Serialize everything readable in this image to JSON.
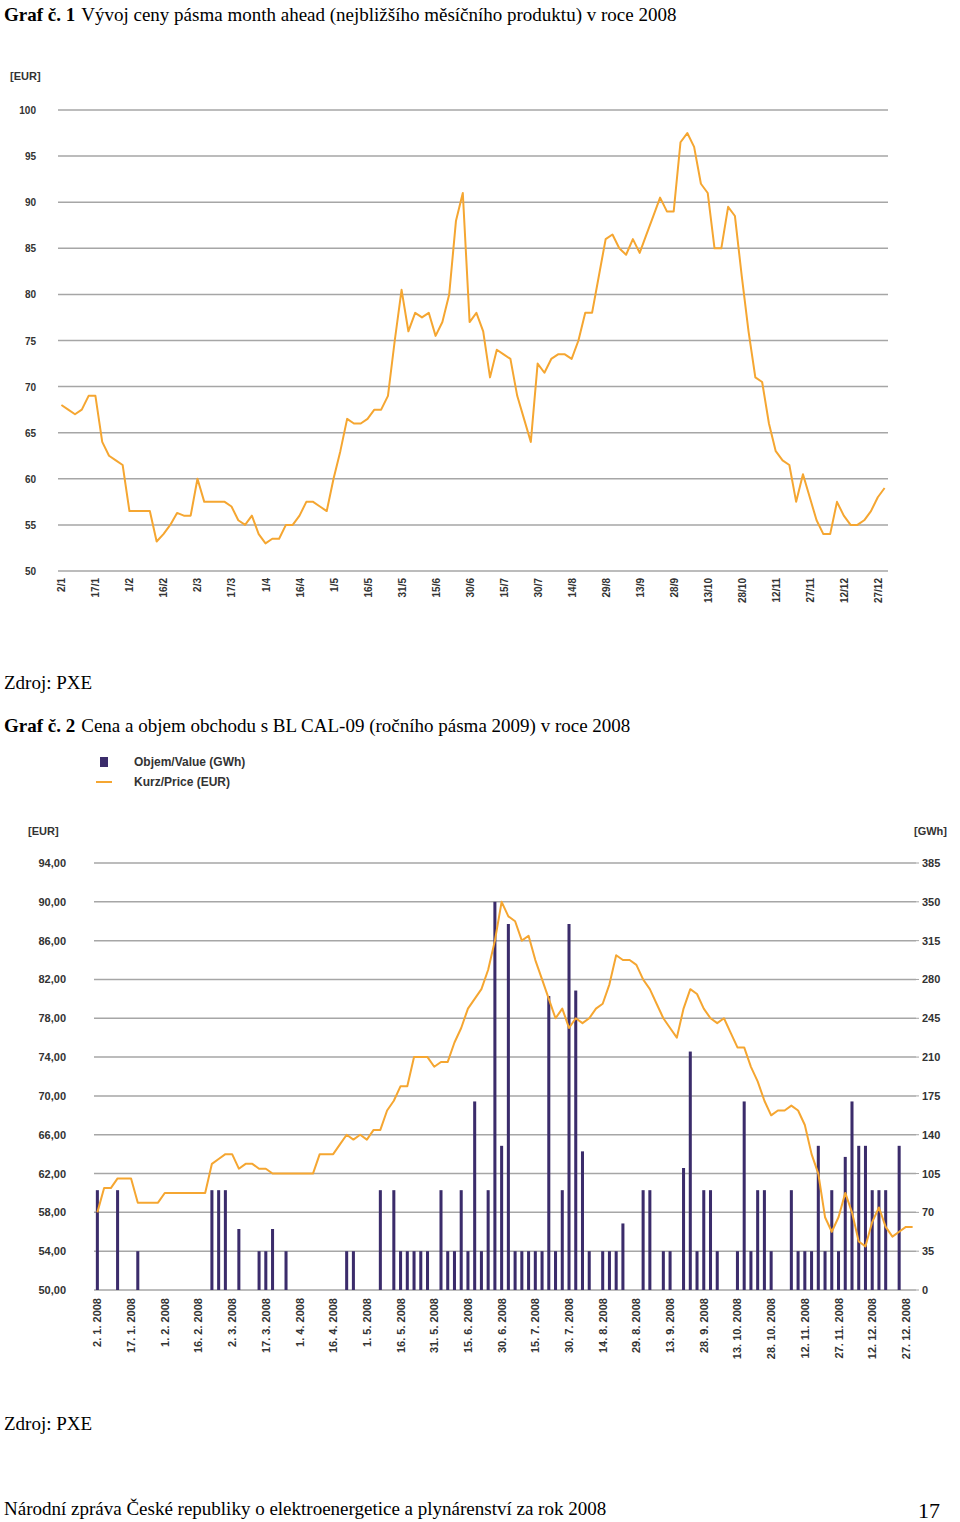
{
  "page": {
    "sources": [
      "Zdroj: PXE",
      "Zdroj: PXE"
    ],
    "footer": "Národní zpráva České republiky o elektroenergetice a plynárenství za rok 2008",
    "page_number": "17"
  },
  "chart_data": [
    {
      "type": "line",
      "number_label": "Graf č. 1",
      "title": "Vývoj ceny pásma month ahead (nejbližšího měsíčního produktu) v roce 2008",
      "y_label": "[EUR]",
      "categories": [
        "2/1",
        null,
        null,
        null,
        null,
        "17/1",
        null,
        null,
        null,
        null,
        "1/2",
        null,
        null,
        null,
        null,
        "16/2",
        null,
        null,
        null,
        null,
        "2/3",
        null,
        null,
        null,
        null,
        "17/3",
        null,
        null,
        null,
        null,
        "1/4",
        null,
        null,
        null,
        null,
        "16/4",
        null,
        null,
        null,
        null,
        "1/5",
        null,
        null,
        null,
        null,
        "16/5",
        null,
        null,
        null,
        null,
        "31/5",
        null,
        null,
        null,
        null,
        "15/6",
        null,
        null,
        null,
        null,
        "30/6",
        null,
        null,
        null,
        null,
        "15/7",
        null,
        null,
        null,
        null,
        "30/7",
        null,
        null,
        null,
        null,
        "14/8",
        null,
        null,
        null,
        null,
        "29/8",
        null,
        null,
        null,
        null,
        "13/9",
        null,
        null,
        null,
        null,
        "28/9",
        null,
        null,
        null,
        null,
        "13/10",
        null,
        null,
        null,
        null,
        "28/10",
        null,
        null,
        null,
        null,
        "12/11",
        null,
        null,
        null,
        null,
        "27/11",
        null,
        null,
        null,
        null,
        "12/12",
        null,
        null,
        null,
        null,
        "27/12",
        null
      ],
      "series": [
        {
          "type": "line",
          "color": "#f5a631",
          "values": [
            68,
            67.5,
            67,
            67.5,
            69,
            69,
            64,
            62.5,
            62,
            61.5,
            56.5,
            56.5,
            56.5,
            56.5,
            53.2,
            54,
            55,
            56.3,
            56,
            56,
            60,
            57.5,
            57.5,
            57.5,
            57.5,
            57,
            55.5,
            55,
            56,
            54,
            53,
            53.5,
            53.5,
            55,
            55,
            56,
            57.5,
            57.5,
            57,
            56.5,
            60,
            63,
            66.5,
            66,
            66,
            66.5,
            67.5,
            67.5,
            69,
            75,
            80.5,
            76,
            78,
            77.5,
            78,
            75.5,
            77,
            80,
            88,
            91,
            77,
            78,
            76,
            71,
            74,
            73.5,
            73,
            69,
            66.5,
            64,
            72.5,
            71.5,
            73,
            73.5,
            73.5,
            73,
            75,
            78,
            78,
            82,
            86,
            86.5,
            85,
            84.3,
            86,
            84.5,
            86.5,
            88.5,
            90.5,
            89,
            89,
            96.5,
            97.5,
            96,
            92,
            91,
            85,
            85,
            89.5,
            88.5,
            82,
            76,
            71,
            70.5,
            66,
            63,
            62,
            61.5,
            57.5,
            60.5,
            58,
            55.5,
            54,
            54,
            57.5,
            56,
            55,
            55,
            55.5,
            56.5,
            58,
            59
          ]
        }
      ],
      "ylim": [
        50,
        100
      ],
      "yticks": [
        50,
        55,
        60,
        65,
        70,
        75,
        80,
        85,
        90,
        95,
        100
      ],
      "grid": true
    },
    {
      "type": "bar",
      "number_label": "Graf č. 2",
      "title": "Cena a objem obchodu s BL CAL-09 (ročního pásma 2009) v roce 2008",
      "y_label": "[EUR]",
      "y2_label": "[GWh]",
      "categories": [
        "2. 1. 2008",
        null,
        null,
        null,
        null,
        "17. 1. 2008",
        null,
        null,
        null,
        null,
        "1. 2. 2008",
        null,
        null,
        null,
        null,
        "16. 2. 2008",
        null,
        null,
        null,
        null,
        "2. 3. 2008",
        null,
        null,
        null,
        null,
        "17. 3. 2008",
        null,
        null,
        null,
        null,
        "1. 4. 2008",
        null,
        null,
        null,
        null,
        "16. 4. 2008",
        null,
        null,
        null,
        null,
        "1. 5. 2008",
        null,
        null,
        null,
        null,
        "16. 5. 2008",
        null,
        null,
        null,
        null,
        "31. 5. 2008",
        null,
        null,
        null,
        null,
        "15. 6. 2008",
        null,
        null,
        null,
        null,
        "30. 6. 2008",
        null,
        null,
        null,
        null,
        "15. 7. 2008",
        null,
        null,
        null,
        null,
        "30. 7. 2008",
        null,
        null,
        null,
        null,
        "14. 8. 2008",
        null,
        null,
        null,
        null,
        "29. 8. 2008",
        null,
        null,
        null,
        null,
        "13. 9. 2008",
        null,
        null,
        null,
        null,
        "28. 9. 2008",
        null,
        null,
        null,
        null,
        "13. 10. 2008",
        null,
        null,
        null,
        null,
        "28. 10. 2008",
        null,
        null,
        null,
        null,
        "12. 11. 2008",
        null,
        null,
        null,
        null,
        "27. 11. 2008",
        null,
        null,
        null,
        null,
        "12. 12. 2008",
        null,
        null,
        null,
        null,
        "27. 12. 2008",
        null
      ],
      "series": [
        {
          "name": "Objem/Value (GWh)",
          "type": "bar",
          "axis": "y2",
          "color": "#3b2c6b",
          "values": [
            90,
            null,
            null,
            90,
            null,
            null,
            35,
            null,
            null,
            null,
            null,
            null,
            null,
            null,
            null,
            null,
            null,
            90,
            90,
            90,
            null,
            55,
            null,
            null,
            35,
            35,
            55,
            null,
            35,
            null,
            null,
            null,
            null,
            null,
            null,
            null,
            null,
            35,
            35,
            null,
            null,
            null,
            90,
            null,
            90,
            35,
            35,
            35,
            35,
            35,
            null,
            90,
            35,
            35,
            90,
            35,
            170,
            35,
            90,
            350,
            130,
            330,
            35,
            35,
            35,
            35,
            35,
            265,
            35,
            90,
            330,
            270,
            125,
            35,
            null,
            35,
            35,
            35,
            60,
            null,
            null,
            90,
            90,
            null,
            35,
            35,
            null,
            110,
            215,
            35,
            90,
            90,
            35,
            null,
            null,
            35,
            170,
            35,
            90,
            90,
            35,
            null,
            null,
            90,
            35,
            35,
            35,
            130,
            35,
            90,
            35,
            120,
            170,
            130,
            130,
            90,
            90,
            90,
            null,
            130,
            null,
            null
          ]
        },
        {
          "name": "Kurz/Price (EUR)",
          "type": "line",
          "color": "#f5a631",
          "values": [
            58,
            60.5,
            60.5,
            61.5,
            61.5,
            61.5,
            59,
            59,
            59,
            59,
            60,
            60,
            60,
            60,
            60,
            60,
            60,
            63,
            63.5,
            64,
            64,
            62.5,
            63,
            63,
            62.5,
            62.5,
            62,
            62,
            62,
            62,
            62,
            62,
            62,
            64,
            64,
            64,
            65,
            66,
            65.5,
            66,
            65.5,
            66.5,
            66.5,
            68.5,
            69.5,
            71,
            71,
            74,
            74,
            74,
            73,
            73.5,
            73.5,
            75.5,
            77,
            79,
            80,
            81,
            83,
            86,
            90,
            88.5,
            88,
            86,
            86.5,
            84,
            82,
            80,
            78,
            79,
            77,
            78,
            77.5,
            78,
            79,
            79.5,
            81.5,
            84.5,
            84,
            84,
            83.5,
            82,
            81,
            79.5,
            78,
            77,
            76,
            79,
            81,
            80.5,
            79,
            78,
            77.5,
            78,
            76.5,
            75,
            75,
            73,
            71.5,
            69.5,
            68,
            68.5,
            68.5,
            69,
            68.5,
            67,
            64,
            62,
            57.5,
            56,
            57.5,
            60,
            58,
            55,
            54.5,
            57,
            58.5,
            56.5,
            55.5,
            56,
            56.5,
            56.5
          ]
        }
      ],
      "ylim": [
        50,
        94
      ],
      "yticks": [
        {
          "value": 50,
          "label": "50,00"
        },
        {
          "value": 54,
          "label": "54,00"
        },
        {
          "value": 58,
          "label": "58,00"
        },
        {
          "value": 62,
          "label": "62,00"
        },
        {
          "value": 66,
          "label": "66,00"
        },
        {
          "value": 70,
          "label": "70,00"
        },
        {
          "value": 74,
          "label": "74,00"
        },
        {
          "value": 78,
          "label": "78,00"
        },
        {
          "value": 82,
          "label": "82,00"
        },
        {
          "value": 86,
          "label": "86,00"
        },
        {
          "value": 90,
          "label": "90,00"
        },
        {
          "value": 94,
          "label": "94,00"
        }
      ],
      "y2lim": [
        0,
        385
      ],
      "y2ticks": [
        0,
        35,
        70,
        105,
        140,
        175,
        210,
        245,
        280,
        315,
        350,
        385
      ],
      "grid": true,
      "legend": "top-left"
    }
  ]
}
